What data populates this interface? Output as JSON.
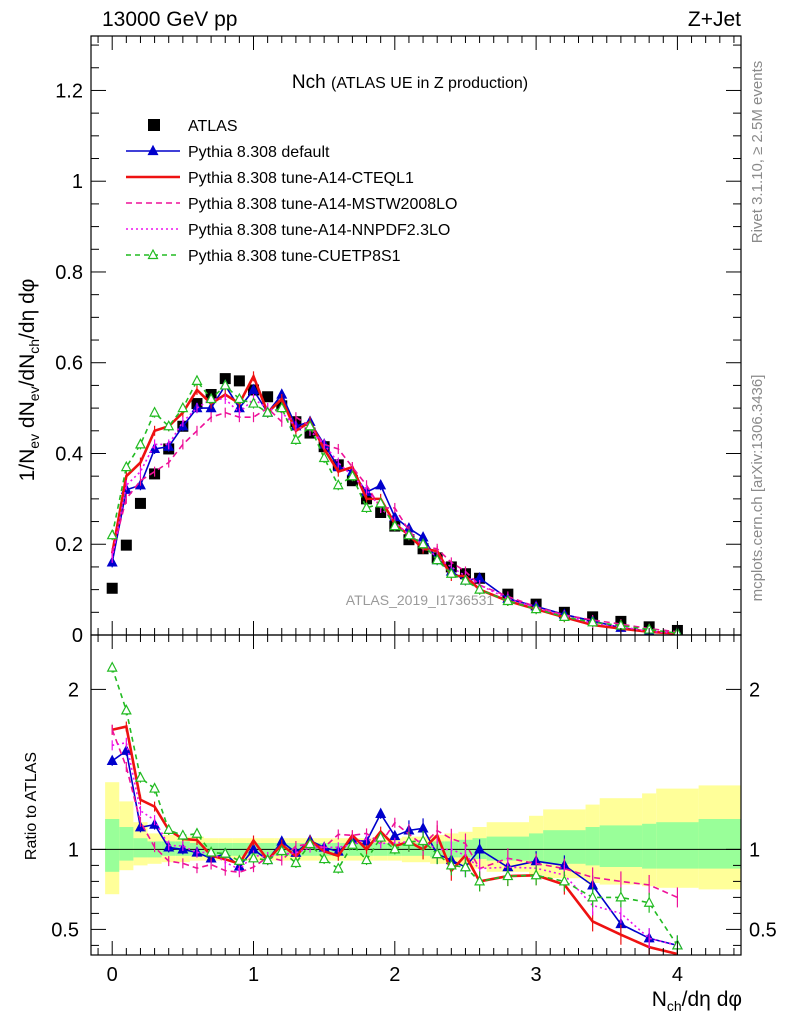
{
  "header": {
    "left": "13000 GeV pp",
    "right": "Z+Jet"
  },
  "side_labels": {
    "rivet": "Rivet 3.1.10, ≥ 2.5M events",
    "mcplots": "mcplots.cern.ch [arXiv:1306.3436]"
  },
  "chart_data": {
    "type": "line",
    "title": "Nch",
    "subtitle": "(ATLAS UE in Z production)",
    "watermark": "ATLAS_2019_I1736531",
    "xlabel": "N_ch/dη dφ",
    "ylabel": "1/N_ev dN_ev/dN_ch/dη dφ",
    "ratio_ylabel": "Ratio to ATLAS",
    "xlim": [
      -0.15,
      4.45
    ],
    "ylim": [
      0,
      1.32
    ],
    "ratio_ylim": [
      0.34,
      2.34
    ],
    "x_ticks": [
      0,
      1,
      2,
      3,
      4
    ],
    "y_ticks": [
      0,
      0.2,
      0.4,
      0.6,
      0.8,
      1,
      1.2
    ],
    "y_tick_labels": [
      "0",
      "0.2",
      "0.4",
      "0.6",
      "0.8",
      "1",
      "1.2"
    ],
    "ratio_ticks": [
      0.5,
      1,
      2
    ],
    "ratio_tick_labels": [
      "0.5",
      "1",
      "2"
    ],
    "x": [
      0,
      0.1,
      0.2,
      0.3,
      0.4,
      0.5,
      0.6,
      0.7,
      0.8,
      0.9,
      1.0,
      1.1,
      1.2,
      1.3,
      1.4,
      1.5,
      1.6,
      1.7,
      1.8,
      1.9,
      2.0,
      2.1,
      2.2,
      2.3,
      2.4,
      2.5,
      2.6,
      2.8,
      3.0,
      3.2,
      3.4,
      3.6,
      3.8,
      4.0
    ],
    "band_edges": [
      -0.05,
      0.05,
      0.15,
      0.25,
      0.35,
      0.45,
      0.55,
      0.65,
      0.75,
      0.85,
      0.95,
      1.05,
      1.15,
      1.25,
      1.35,
      1.45,
      1.55,
      1.65,
      1.75,
      1.85,
      1.95,
      2.05,
      2.15,
      2.25,
      2.35,
      2.45,
      2.55,
      2.65,
      2.95,
      3.05,
      3.35,
      3.45,
      3.75,
      3.85,
      4.15,
      4.45
    ],
    "yellow_band": [
      [
        0.72,
        1.42
      ],
      [
        0.87,
        1.3
      ],
      [
        0.9,
        1.17
      ],
      [
        0.91,
        1.1
      ],
      [
        0.92,
        1.09
      ],
      [
        0.92,
        1.08
      ],
      [
        0.93,
        1.08
      ],
      [
        0.93,
        1.07
      ],
      [
        0.93,
        1.07
      ],
      [
        0.93,
        1.07
      ],
      [
        0.93,
        1.07
      ],
      [
        0.93,
        1.07
      ],
      [
        0.93,
        1.07
      ],
      [
        0.93,
        1.07
      ],
      [
        0.93,
        1.07
      ],
      [
        0.93,
        1.07
      ],
      [
        0.93,
        1.07
      ],
      [
        0.93,
        1.07
      ],
      [
        0.93,
        1.07
      ],
      [
        0.93,
        1.07
      ],
      [
        0.93,
        1.07
      ],
      [
        0.92,
        1.08
      ],
      [
        0.92,
        1.08
      ],
      [
        0.91,
        1.09
      ],
      [
        0.91,
        1.1
      ],
      [
        0.9,
        1.11
      ],
      [
        0.88,
        1.14
      ],
      [
        0.86,
        1.17
      ],
      [
        0.84,
        1.21
      ],
      [
        0.82,
        1.25
      ],
      [
        0.79,
        1.28
      ],
      [
        0.78,
        1.32
      ],
      [
        0.77,
        1.35
      ],
      [
        0.76,
        1.38
      ],
      [
        0.75,
        1.4
      ]
    ],
    "green_band": [
      [
        0.86,
        1.19
      ],
      [
        0.93,
        1.14
      ],
      [
        0.95,
        1.07
      ],
      [
        0.95,
        1.05
      ],
      [
        0.96,
        1.05
      ],
      [
        0.96,
        1.05
      ],
      [
        0.96,
        1.04
      ],
      [
        0.96,
        1.04
      ],
      [
        0.96,
        1.04
      ],
      [
        0.96,
        1.04
      ],
      [
        0.96,
        1.04
      ],
      [
        0.96,
        1.04
      ],
      [
        0.96,
        1.04
      ],
      [
        0.96,
        1.04
      ],
      [
        0.96,
        1.04
      ],
      [
        0.96,
        1.04
      ],
      [
        0.96,
        1.04
      ],
      [
        0.96,
        1.04
      ],
      [
        0.96,
        1.04
      ],
      [
        0.96,
        1.04
      ],
      [
        0.96,
        1.04
      ],
      [
        0.96,
        1.04
      ],
      [
        0.96,
        1.04
      ],
      [
        0.95,
        1.05
      ],
      [
        0.95,
        1.05
      ],
      [
        0.95,
        1.06
      ],
      [
        0.94,
        1.07
      ],
      [
        0.93,
        1.08
      ],
      [
        0.92,
        1.1
      ],
      [
        0.91,
        1.12
      ],
      [
        0.9,
        1.14
      ],
      [
        0.89,
        1.15
      ],
      [
        0.88,
        1.16
      ],
      [
        0.88,
        1.17
      ],
      [
        0.88,
        1.19
      ]
    ],
    "series": [
      {
        "name": "ATLAS",
        "color": "#000000",
        "style": "data",
        "values": [
          0.103,
          0.198,
          0.29,
          0.355,
          0.41,
          0.46,
          0.51,
          0.53,
          0.565,
          0.56,
          0.54,
          0.525,
          0.505,
          0.47,
          0.445,
          0.415,
          0.375,
          0.34,
          0.3,
          0.27,
          0.24,
          0.21,
          0.19,
          0.17,
          0.15,
          0.135,
          0.125,
          0.09,
          0.068,
          0.05,
          0.04,
          0.03,
          0.018,
          0.01
        ]
      },
      {
        "name": "Pythia 8.308 default",
        "color": "#0000cc",
        "style": "solid-triangle",
        "values": [
          0.16,
          0.32,
          0.33,
          0.41,
          0.415,
          0.46,
          0.5,
          0.5,
          0.55,
          0.5,
          0.54,
          0.49,
          0.53,
          0.46,
          0.47,
          0.42,
          0.37,
          0.36,
          0.315,
          0.33,
          0.26,
          0.235,
          0.215,
          0.165,
          0.14,
          0.12,
          0.125,
          0.08,
          0.063,
          0.045,
          0.031,
          0.016,
          0.008,
          0.004
        ]
      },
      {
        "name": "Pythia 8.308 tune-A14-CTEQL1",
        "color": "#ee1111",
        "style": "solid",
        "values": [
          0.18,
          0.35,
          0.38,
          0.45,
          0.46,
          0.49,
          0.54,
          0.51,
          0.53,
          0.51,
          0.57,
          0.49,
          0.52,
          0.45,
          0.47,
          0.41,
          0.36,
          0.37,
          0.3,
          0.3,
          0.245,
          0.22,
          0.19,
          0.185,
          0.13,
          0.13,
          0.1,
          0.075,
          0.057,
          0.039,
          0.022,
          0.014,
          0.007,
          0.003
        ]
      },
      {
        "name": "Pythia 8.308 tune-A14-MSTW2008LO",
        "color": "#ee1199",
        "style": "dashed",
        "values": [
          0.18,
          0.3,
          0.34,
          0.36,
          0.38,
          0.42,
          0.45,
          0.48,
          0.49,
          0.48,
          0.48,
          0.5,
          0.47,
          0.48,
          0.46,
          0.42,
          0.41,
          0.37,
          0.33,
          0.28,
          0.28,
          0.23,
          0.195,
          0.19,
          0.16,
          0.14,
          0.11,
          0.085,
          0.062,
          0.044,
          0.033,
          0.024,
          0.014,
          0.007
        ]
      },
      {
        "name": "Pythia 8.308 tune-A14-NNPDF2.3LO",
        "color": "#ee11ee",
        "style": "dotted",
        "values": [
          0.17,
          0.33,
          0.36,
          0.42,
          0.42,
          0.47,
          0.5,
          0.52,
          0.52,
          0.49,
          0.52,
          0.5,
          0.49,
          0.46,
          0.45,
          0.42,
          0.38,
          0.35,
          0.32,
          0.28,
          0.25,
          0.22,
          0.2,
          0.17,
          0.15,
          0.13,
          0.11,
          0.08,
          0.06,
          0.042,
          0.026,
          0.018,
          0.008,
          0.004
        ]
      },
      {
        "name": "Pythia 8.308 tune-CUETP8S1",
        "color": "#22bb22",
        "style": "dashed-open-triangle",
        "values": [
          0.22,
          0.37,
          0.42,
          0.49,
          0.46,
          0.5,
          0.56,
          0.52,
          0.55,
          0.52,
          0.51,
          0.49,
          0.5,
          0.43,
          0.46,
          0.39,
          0.33,
          0.35,
          0.28,
          0.29,
          0.24,
          0.22,
          0.2,
          0.165,
          0.135,
          0.12,
          0.1,
          0.075,
          0.057,
          0.04,
          0.028,
          0.021,
          0.012,
          0.004
        ]
      }
    ],
    "legend": "top-left"
  }
}
